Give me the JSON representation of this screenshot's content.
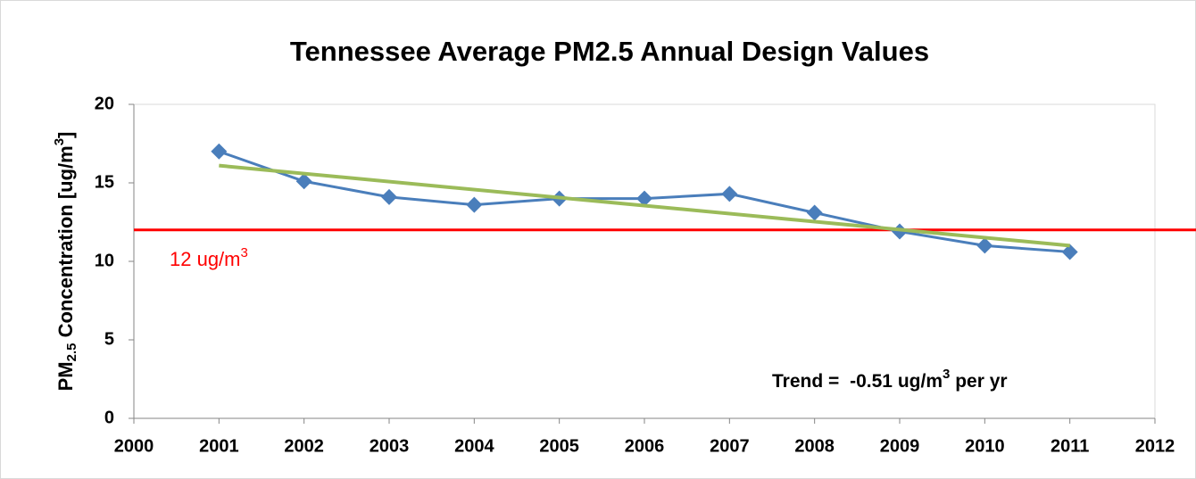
{
  "chart_data": {
    "type": "line",
    "title": "Tennessee Average PM2.5 Annual Design Values",
    "x": [
      2001,
      2002,
      2003,
      2004,
      2005,
      2006,
      2007,
      2008,
      2009,
      2010,
      2011
    ],
    "series": [
      {
        "values": [
          17.0,
          15.1,
          14.1,
          13.6,
          14.0,
          14.0,
          14.3,
          13.1,
          11.9,
          11.0,
          10.6
        ],
        "color": "#4a7ebb",
        "marker": "diamond"
      }
    ],
    "trend": {
      "x": [
        2001,
        2011
      ],
      "values": [
        16.1,
        11.0
      ],
      "color": "#9bbb59"
    },
    "reference_line": {
      "value": 12,
      "color": "#ff0000",
      "label": [
        "12 ug/m",
        "3"
      ]
    },
    "annotation": [
      "Trend =",
      "-0.51",
      "ug/m",
      "3",
      "per yr"
    ],
    "ylabel": [
      "PM",
      "2.5",
      " Concentration  [ug/m",
      "3",
      "]"
    ],
    "xlim": [
      2000,
      2012
    ],
    "xticks": [
      2000,
      2001,
      2002,
      2003,
      2004,
      2005,
      2006,
      2007,
      2008,
      2009,
      2010,
      2011,
      2012
    ],
    "ylim": [
      0,
      20
    ],
    "yticks": [
      0,
      5,
      10,
      15,
      20
    ],
    "grid": false
  }
}
